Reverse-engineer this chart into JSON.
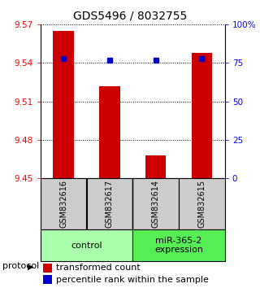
{
  "title": "GDS5496 / 8032755",
  "samples": [
    "GSM832616",
    "GSM832617",
    "GSM832614",
    "GSM832615"
  ],
  "transformed_counts": [
    9.565,
    9.522,
    9.468,
    9.548
  ],
  "percentile_ranks": [
    78,
    77,
    77,
    78
  ],
  "ylim_left": [
    9.45,
    9.57
  ],
  "ylim_right": [
    0,
    100
  ],
  "yticks_left": [
    9.45,
    9.48,
    9.51,
    9.54,
    9.57
  ],
  "yticks_right": [
    0,
    25,
    50,
    75,
    100
  ],
  "ytick_labels_left": [
    "9.45",
    "9.48",
    "9.51",
    "9.54",
    "9.57"
  ],
  "ytick_labels_right": [
    "0",
    "25",
    "50",
    "75",
    "100%"
  ],
  "bar_color": "#cc0000",
  "dot_color": "#0000cc",
  "groups": [
    {
      "label": "control",
      "color": "#aaffaa"
    },
    {
      "label": "miR-365-2\nexpression",
      "color": "#55ee55"
    }
  ],
  "sample_box_color": "#cccccc",
  "protocol_label": "protocol",
  "legend_bar_label": "transformed count",
  "legend_dot_label": "percentile rank within the sample",
  "title_fontsize": 10,
  "axis_fontsize": 7.5,
  "sample_fontsize": 7,
  "group_fontsize": 8,
  "legend_fontsize": 8
}
